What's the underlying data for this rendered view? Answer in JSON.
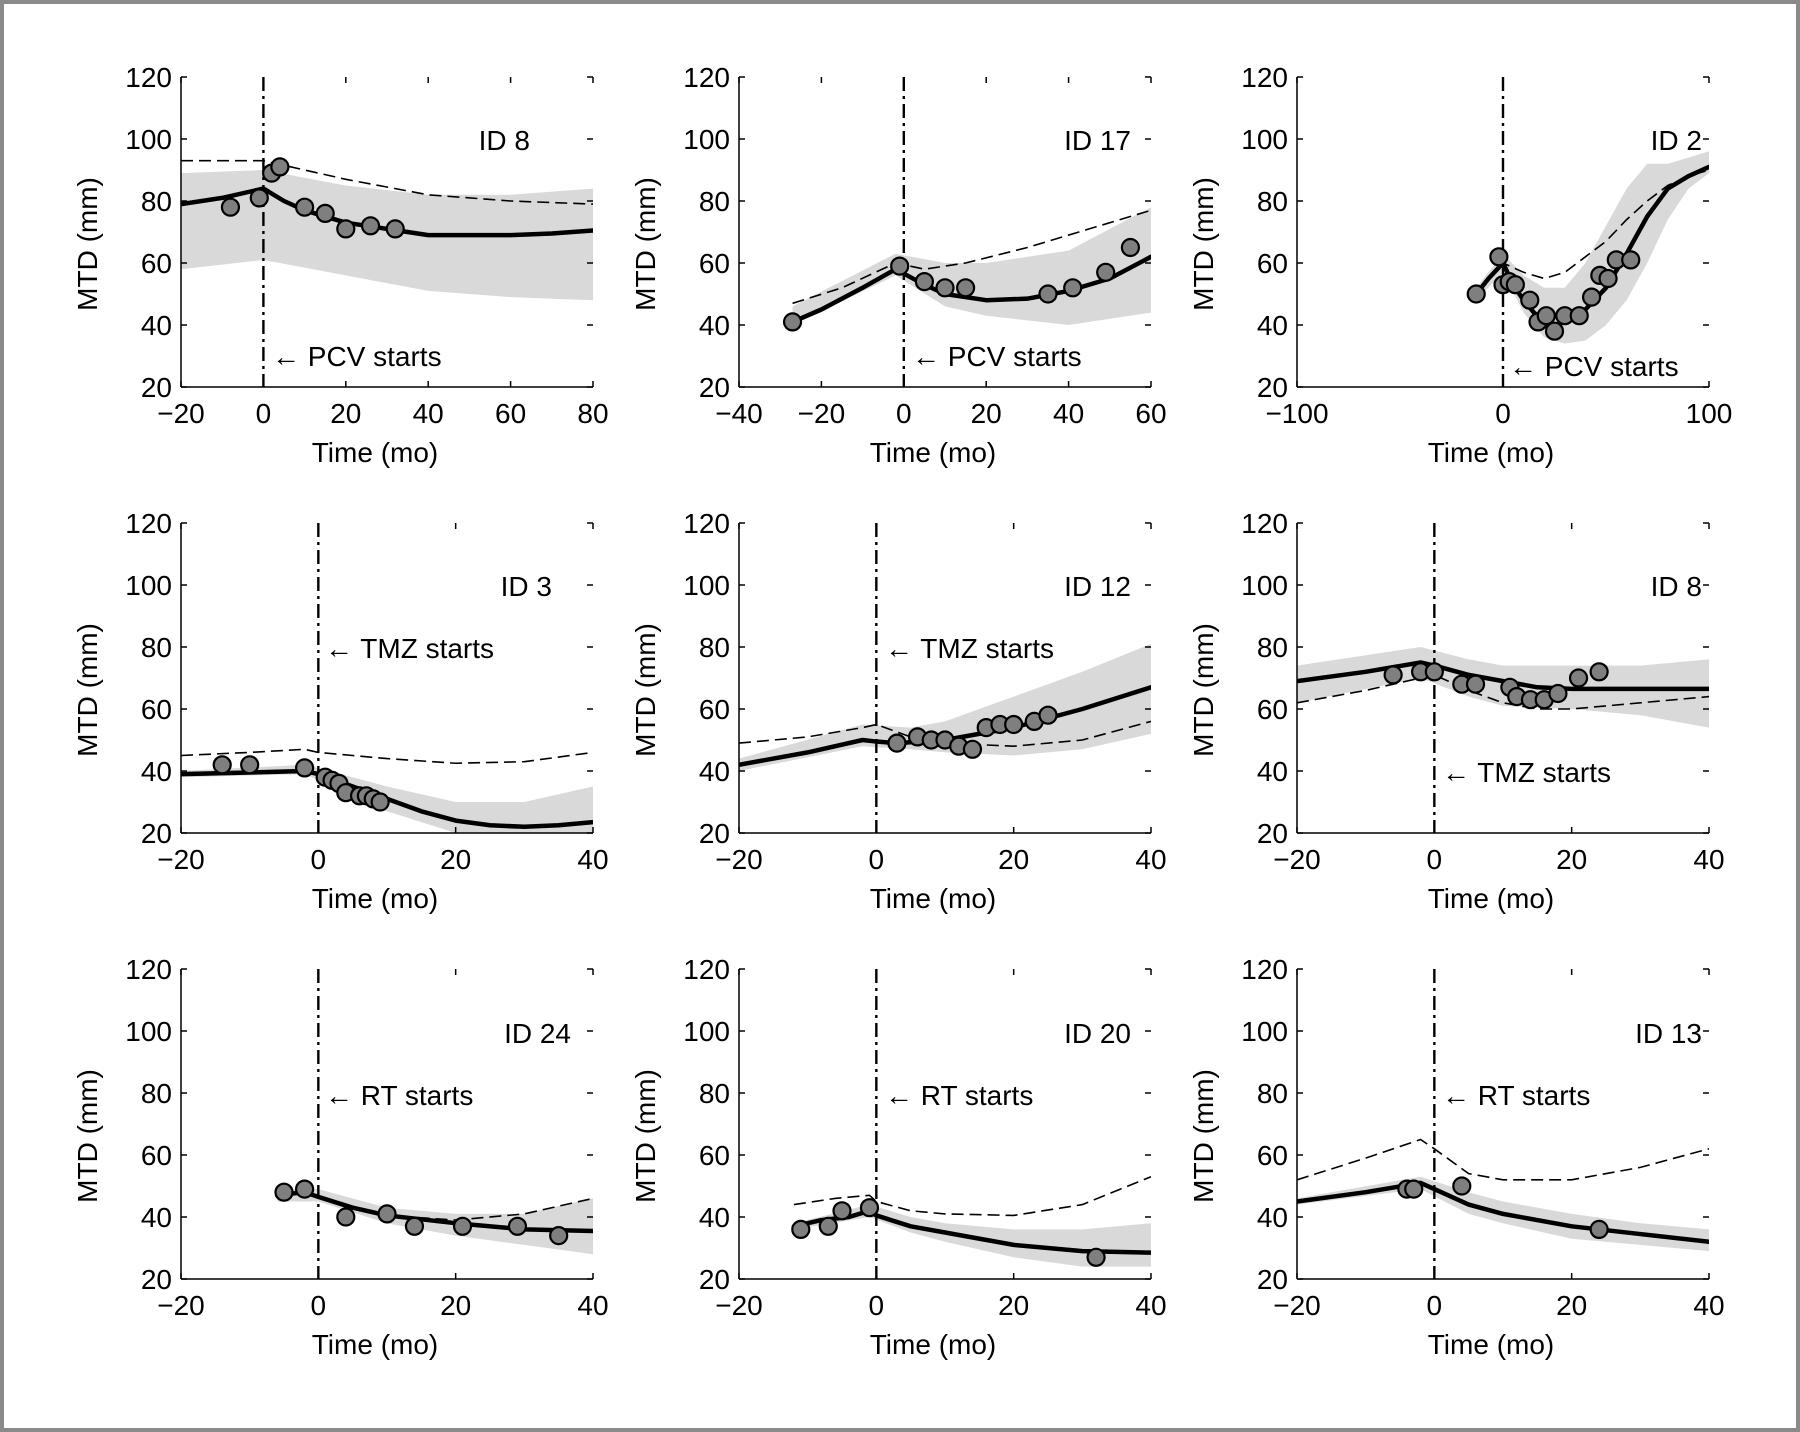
{
  "colors": {
    "band": "#d9d9d9",
    "marker_fill": "#7f7f7f",
    "line": "#000000",
    "frame": "#8a8a8a"
  },
  "ylabel": "MTD (mm)",
  "xlabel": "Time (mo)",
  "chart_data": [
    {
      "type": "line",
      "id_label": "ID 8",
      "treatment_label": "←  PCV starts",
      "xlim": [
        -20,
        80
      ],
      "ylim": [
        20,
        120
      ],
      "xticks": [
        -20,
        0,
        20,
        40,
        60,
        80
      ],
      "xtick_labels": [
        "−20",
        "0",
        "20",
        "40",
        "60",
        "80"
      ],
      "yticks": [
        20,
        40,
        60,
        80,
        100,
        120
      ],
      "ytick_labels": [
        "20",
        "40",
        "60",
        "80",
        "100",
        "120"
      ],
      "treatment_start_x": 0,
      "fit": {
        "x": [
          -20,
          -10,
          0,
          5,
          10,
          20,
          30,
          40,
          50,
          60,
          70,
          80
        ],
        "y": [
          79,
          81,
          84,
          80,
          77,
          73,
          71,
          69,
          69,
          69,
          69.5,
          70.5
        ]
      },
      "band": {
        "x": [
          -20,
          0,
          20,
          40,
          60,
          80
        ],
        "lower": [
          58,
          61,
          56,
          51,
          49,
          48
        ],
        "upper": [
          89,
          90,
          85,
          82,
          82,
          84
        ]
      },
      "dashed": {
        "x": [
          -20,
          -10,
          0,
          10,
          20,
          40,
          60,
          80
        ],
        "y": [
          93,
          93,
          93,
          90,
          87,
          82,
          80,
          79
        ]
      },
      "points": {
        "x": [
          -8,
          -1,
          2,
          4,
          10,
          15,
          20,
          26,
          32
        ],
        "y": [
          78,
          81,
          89,
          91,
          78,
          76,
          71,
          72,
          71
        ]
      }
    },
    {
      "type": "line",
      "id_label": "ID 17",
      "treatment_label": "←  PCV starts",
      "xlim": [
        -40,
        60
      ],
      "ylim": [
        20,
        120
      ],
      "xticks": [
        -40,
        -20,
        0,
        20,
        40,
        60
      ],
      "xtick_labels": [
        "−40",
        "−20",
        "0",
        "20",
        "40",
        "60"
      ],
      "yticks": [
        20,
        40,
        60,
        80,
        100,
        120
      ],
      "ytick_labels": [
        "20",
        "40",
        "60",
        "80",
        "100",
        "120"
      ],
      "treatment_start_x": 0,
      "fit": {
        "x": [
          -27,
          -20,
          -10,
          -2,
          5,
          10,
          20,
          30,
          40,
          50,
          60
        ],
        "y": [
          41,
          45,
          52,
          58,
          53,
          50,
          48,
          48.5,
          51,
          55,
          62
        ]
      },
      "band": {
        "x": [
          -27,
          -2,
          10,
          20,
          40,
          60
        ],
        "lower": [
          40,
          56,
          46,
          43,
          40,
          44
        ],
        "upper": [
          46,
          63,
          60,
          60,
          64,
          78
        ]
      },
      "dashed": {
        "x": [
          -27,
          -15,
          -2,
          5,
          15,
          30,
          45,
          60
        ],
        "y": [
          47,
          52,
          60,
          58,
          60,
          65,
          71,
          77
        ]
      },
      "points": {
        "x": [
          -27,
          -1,
          5,
          10,
          15,
          35,
          41,
          49,
          55
        ],
        "y": [
          41,
          59,
          54,
          52,
          52,
          50,
          52,
          57,
          65
        ]
      }
    },
    {
      "type": "line",
      "id_label": "ID 2",
      "treatment_label": "←  PCV starts",
      "xlim": [
        -100,
        100
      ],
      "ylim": [
        20,
        120
      ],
      "xticks": [
        -100,
        0,
        100
      ],
      "xtick_labels": [
        "−100",
        "0",
        "100"
      ],
      "yticks": [
        20,
        40,
        60,
        80,
        100,
        120
      ],
      "ytick_labels": [
        "20",
        "40",
        "60",
        "80",
        "100",
        "120"
      ],
      "treatment_start_x": 0,
      "fit": {
        "x": [
          -13,
          -7,
          0,
          5,
          10,
          15,
          20,
          25,
          30,
          40,
          50,
          60,
          70,
          80,
          90,
          100
        ],
        "y": [
          50,
          55,
          60,
          53,
          48,
          44,
          41,
          40,
          41,
          45,
          52,
          63,
          75,
          84,
          88,
          91
        ]
      },
      "band": {
        "x": [
          -13,
          0,
          10,
          20,
          30,
          40,
          50,
          60,
          70,
          80,
          90,
          100
        ],
        "lower": [
          48,
          57,
          44,
          36,
          34,
          35,
          40,
          48,
          60,
          74,
          84,
          89
        ],
        "upper": [
          52,
          63,
          56,
          52,
          52,
          60,
          72,
          84,
          92,
          92,
          94,
          96
        ]
      },
      "dashed": {
        "x": [
          -13,
          0,
          10,
          20,
          30,
          40,
          50,
          60,
          70,
          80,
          90,
          100
        ],
        "y": [
          50,
          60,
          57,
          55,
          57,
          62,
          67,
          74,
          80,
          85,
          88,
          90
        ]
      },
      "points": {
        "x": [
          -13,
          -2,
          0,
          3,
          6,
          13,
          17,
          21,
          25,
          30,
          37,
          43,
          47,
          51,
          55,
          62
        ],
        "y": [
          50,
          62,
          53,
          54,
          53,
          48,
          41,
          43,
          38,
          43,
          43,
          49,
          56,
          55,
          61,
          61
        ]
      }
    },
    {
      "type": "line",
      "id_label": "ID 3",
      "treatment_label": "←  TMZ starts",
      "xlim": [
        -20,
        40
      ],
      "ylim": [
        20,
        120
      ],
      "xticks": [
        -20,
        0,
        20,
        40
      ],
      "xtick_labels": [
        "−20",
        "0",
        "20",
        "40"
      ],
      "yticks": [
        20,
        40,
        60,
        80,
        100,
        120
      ],
      "ytick_labels": [
        "20",
        "40",
        "60",
        "80",
        "100",
        "120"
      ],
      "treatment_start_x": 0,
      "fit": {
        "x": [
          -20,
          -10,
          -2,
          0,
          5,
          10,
          15,
          20,
          25,
          30,
          35,
          40
        ],
        "y": [
          39,
          39.5,
          40,
          39,
          35,
          31,
          27,
          24,
          22.5,
          22,
          22.5,
          23.5
        ]
      },
      "band": {
        "x": [
          -20,
          -2,
          5,
          10,
          20,
          30,
          40
        ],
        "lower": [
          38,
          39,
          32,
          27,
          20,
          18,
          20
        ],
        "upper": [
          40,
          42,
          38,
          35,
          30,
          30,
          35
        ]
      },
      "dashed": {
        "x": [
          -20,
          -10,
          -2,
          0,
          5,
          10,
          20,
          30,
          40
        ],
        "y": [
          45,
          46,
          47,
          46,
          45,
          44,
          42.5,
          43,
          46
        ]
      },
      "points": {
        "x": [
          -14,
          -10,
          -2,
          1,
          2,
          3,
          4,
          6,
          7,
          8,
          9
        ],
        "y": [
          42,
          42,
          41,
          38,
          37,
          36,
          33,
          32,
          32,
          31,
          30
        ]
      }
    },
    {
      "type": "line",
      "id_label": "ID 12",
      "treatment_label": "←  TMZ starts",
      "xlim": [
        -20,
        40
      ],
      "ylim": [
        20,
        120
      ],
      "xticks": [
        -20,
        0,
        20,
        40
      ],
      "xtick_labels": [
        "−20",
        "0",
        "20",
        "40"
      ],
      "yticks": [
        20,
        40,
        60,
        80,
        100,
        120
      ],
      "ytick_labels": [
        "20",
        "40",
        "60",
        "80",
        "100",
        "120"
      ],
      "treatment_start_x": 0,
      "fit": {
        "x": [
          -20,
          -10,
          -2,
          0,
          3,
          10,
          20,
          30,
          40
        ],
        "y": [
          42,
          46,
          50,
          49.5,
          49,
          50,
          54,
          60,
          67
        ]
      },
      "band": {
        "x": [
          -20,
          -2,
          5,
          10,
          20,
          30,
          40
        ],
        "lower": [
          40,
          48,
          47,
          46,
          45,
          47,
          52
        ],
        "upper": [
          44,
          55,
          54,
          56,
          64,
          72,
          81
        ]
      },
      "dashed": {
        "x": [
          -20,
          -10,
          -2,
          0,
          5,
          10,
          20,
          30,
          40
        ],
        "y": [
          49,
          51,
          54,
          55,
          51,
          49,
          48,
          50,
          56
        ]
      },
      "points": {
        "x": [
          3,
          6,
          8,
          10,
          12,
          14,
          16,
          18,
          20,
          23,
          25
        ],
        "y": [
          49,
          51,
          50,
          50,
          48,
          47,
          54,
          55,
          55,
          56,
          58
        ]
      }
    },
    {
      "type": "line",
      "id_label": "ID 8",
      "treatment_label": "←  TMZ starts",
      "xlim": [
        -20,
        40
      ],
      "ylim": [
        20,
        120
      ],
      "xticks": [
        -20,
        0,
        20,
        40
      ],
      "xtick_labels": [
        "−20",
        "0",
        "20",
        "40"
      ],
      "yticks": [
        20,
        40,
        60,
        80,
        100,
        120
      ],
      "ytick_labels": [
        "20",
        "40",
        "60",
        "80",
        "100",
        "120"
      ],
      "treatment_start_x": 0,
      "fit": {
        "x": [
          -20,
          -10,
          -2,
          0,
          5,
          10,
          15,
          20,
          30,
          40
        ],
        "y": [
          69,
          72,
          75,
          74,
          71,
          69,
          67,
          66.5,
          66.5,
          66.5
        ]
      },
      "band": {
        "x": [
          -20,
          -2,
          5,
          10,
          20,
          30,
          40
        ],
        "lower": [
          62,
          70,
          64,
          61,
          60,
          58,
          54
        ],
        "upper": [
          74,
          80,
          76,
          74,
          74,
          74,
          76
        ]
      },
      "dashed": {
        "x": [
          -20,
          -10,
          -2,
          0,
          5,
          10,
          15,
          20,
          30,
          40
        ],
        "y": [
          62,
          66,
          70,
          71,
          66,
          62,
          60,
          60,
          62,
          64
        ]
      },
      "points": {
        "x": [
          -6,
          -2,
          0,
          4,
          6,
          11,
          12,
          14,
          16,
          18,
          21,
          24
        ],
        "y": [
          71,
          72,
          72,
          68,
          68,
          67,
          64,
          63,
          63,
          65,
          70,
          72
        ]
      }
    },
    {
      "type": "line",
      "id_label": "ID 24",
      "treatment_label": "←  RT starts",
      "xlim": [
        -20,
        40
      ],
      "ylim": [
        20,
        120
      ],
      "xticks": [
        -20,
        0,
        20,
        40
      ],
      "xtick_labels": [
        "−20",
        "0",
        "20",
        "40"
      ],
      "yticks": [
        20,
        40,
        60,
        80,
        100,
        120
      ],
      "ytick_labels": [
        "20",
        "40",
        "60",
        "80",
        "100",
        "120"
      ],
      "treatment_start_x": 0,
      "fit": {
        "x": [
          -6,
          -2,
          0,
          5,
          10,
          20,
          30,
          40
        ],
        "y": [
          47,
          48,
          46.5,
          43,
          40.5,
          38,
          36,
          35.5
        ]
      },
      "band": {
        "x": [
          -6,
          0,
          10,
          20,
          30,
          40
        ],
        "lower": [
          45,
          45,
          38,
          34,
          31,
          28
        ],
        "upper": [
          49,
          49,
          43,
          41,
          41,
          46
        ]
      },
      "dashed": {
        "x": [
          -6,
          -2,
          0,
          5,
          10,
          20,
          30,
          40
        ],
        "y": [
          47,
          48,
          46.5,
          43,
          40.5,
          39,
          41,
          46
        ]
      },
      "points": {
        "x": [
          -5,
          -2,
          4,
          10,
          14,
          21,
          29,
          35
        ],
        "y": [
          48,
          49,
          40,
          41,
          37,
          37,
          37,
          34
        ]
      }
    },
    {
      "type": "line",
      "id_label": "ID 20",
      "treatment_label": "←  RT starts",
      "xlim": [
        -20,
        40
      ],
      "ylim": [
        20,
        120
      ],
      "xticks": [
        -20,
        0,
        20,
        40
      ],
      "xtick_labels": [
        "−20",
        "0",
        "20",
        "40"
      ],
      "yticks": [
        20,
        40,
        60,
        80,
        100,
        120
      ],
      "ytick_labels": [
        "20",
        "40",
        "60",
        "80",
        "100",
        "120"
      ],
      "treatment_start_x": 0,
      "fit": {
        "x": [
          -12,
          -8,
          -4,
          -1,
          0,
          5,
          10,
          20,
          30,
          40
        ],
        "y": [
          37,
          39,
          40,
          42,
          40.5,
          37,
          35,
          31,
          29,
          28.5
        ]
      },
      "band": {
        "x": [
          -12,
          -1,
          5,
          10,
          20,
          30,
          40
        ],
        "lower": [
          36,
          40,
          35,
          32,
          27,
          24,
          24
        ],
        "upper": [
          38,
          44,
          40,
          38,
          36,
          36,
          38
        ]
      },
      "dashed": {
        "x": [
          -12,
          -6,
          -1,
          0,
          5,
          10,
          20,
          30,
          40
        ],
        "y": [
          44,
          46,
          47,
          45,
          42,
          41,
          40.5,
          44,
          53
        ]
      },
      "points": {
        "x": [
          -11,
          -7,
          -5,
          -1,
          32
        ],
        "y": [
          36,
          37,
          42,
          43,
          27
        ]
      }
    },
    {
      "type": "line",
      "id_label": "ID 13",
      "treatment_label": "←  RT starts",
      "xlim": [
        -20,
        40
      ],
      "ylim": [
        20,
        120
      ],
      "xticks": [
        -20,
        0,
        20,
        40
      ],
      "xtick_labels": [
        "−20",
        "0",
        "20",
        "40"
      ],
      "yticks": [
        20,
        40,
        60,
        80,
        100,
        120
      ],
      "ytick_labels": [
        "20",
        "40",
        "60",
        "80",
        "100",
        "120"
      ],
      "treatment_start_x": 0,
      "fit": {
        "x": [
          -20,
          -10,
          -2,
          0,
          5,
          10,
          20,
          30,
          40
        ],
        "y": [
          45,
          48,
          51,
          49,
          44,
          41,
          37,
          34.5,
          32
        ]
      },
      "band": {
        "x": [
          -20,
          -2,
          5,
          10,
          20,
          30,
          40
        ],
        "lower": [
          44,
          49,
          41,
          38,
          33,
          31,
          29
        ],
        "upper": [
          46,
          53,
          48,
          45,
          41,
          38,
          36
        ]
      },
      "dashed": {
        "x": [
          -20,
          -10,
          -2,
          0,
          5,
          10,
          20,
          30,
          40
        ],
        "y": [
          52,
          59,
          65,
          62,
          54,
          52,
          52,
          56,
          62
        ]
      },
      "points": {
        "x": [
          -4,
          -3,
          4,
          24
        ],
        "y": [
          49,
          49,
          50,
          36
        ]
      }
    }
  ]
}
